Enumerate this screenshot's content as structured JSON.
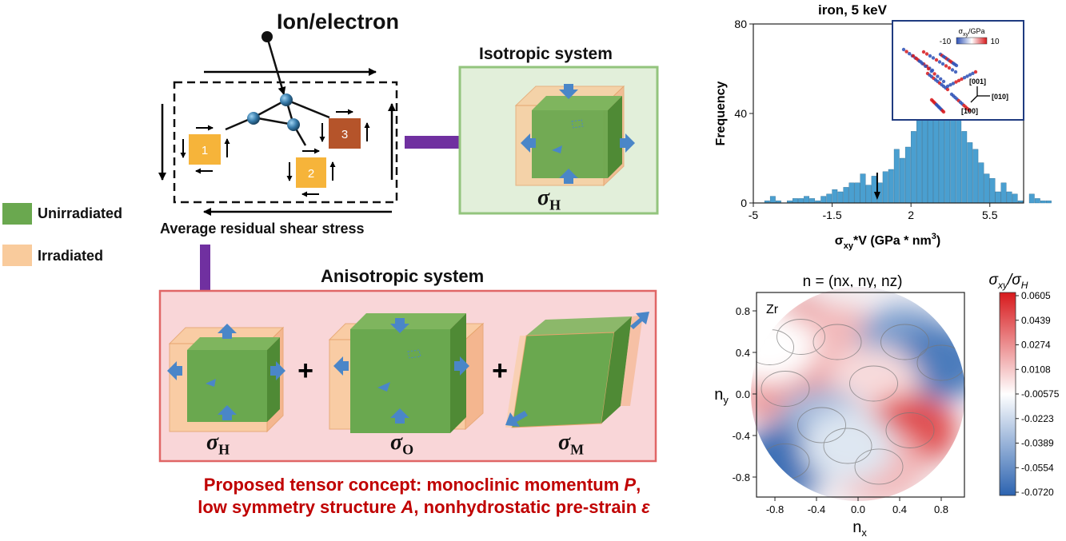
{
  "schematic": {
    "source_label": "Ion/electron",
    "stress_label": "Average residual shear stress",
    "site_labels": [
      "1",
      "2",
      "3"
    ]
  },
  "legend": {
    "items": [
      {
        "label": "Unirradiated",
        "color": "#6aa84f"
      },
      {
        "label": "Irradiated",
        "color": "#f9cb9c"
      }
    ]
  },
  "isotropic": {
    "title": "Isotropic system",
    "sigma": "σ",
    "subscript": "H"
  },
  "anisotropic": {
    "title": "Anisotropic system",
    "terms": [
      {
        "sigma": "σ",
        "subscript": "H"
      },
      {
        "sigma": "σ",
        "subscript": "O"
      },
      {
        "sigma": "σ",
        "subscript": "M"
      }
    ],
    "plus": "+"
  },
  "concept": {
    "line1_pre": "Proposed tensor concept: monoclinic momentum ",
    "line1_var": "P",
    "line1_post": ",",
    "line2_a": "low symmetry structure ",
    "line2_var1": "A",
    "line2_b": ", nonhydrostatic pre-strain ",
    "line2_var2": "ε"
  },
  "colors": {
    "green": "#6aa84f",
    "green_box_bg": "#e2efda",
    "green_box_border": "#93c47d",
    "orange": "#f9cb9c",
    "pink_box_bg": "#f9d6d8",
    "pink_box_border": "#e06666",
    "purple": "#7030a0",
    "blue_arrow": "#4a86c8",
    "concept_red": "#c00000",
    "hist_bar": "#4a9fd0"
  },
  "chart_data": [
    {
      "type": "bar",
      "title": "iron, 5 keV",
      "xlabel": "σxy*V (GPa * nm3)",
      "ylabel": "Frequency",
      "xlim": [
        -5,
        7
      ],
      "ylim": [
        0,
        80
      ],
      "x_ticks": [
        "-5",
        "-1.5",
        "2",
        "5.5"
      ],
      "y_ticks": [
        "0",
        "40",
        "80"
      ],
      "bin_width": 0.25,
      "bin_start": -4.5,
      "values": [
        1,
        3,
        1,
        0,
        1,
        2,
        2,
        3,
        2,
        1,
        3,
        4,
        6,
        5,
        7,
        9,
        9,
        13,
        8,
        12,
        9,
        14,
        15,
        24,
        20,
        25,
        32,
        40,
        46,
        53,
        60,
        69,
        57,
        45,
        40,
        32,
        27,
        24,
        18,
        13,
        11,
        5,
        9,
        5,
        4,
        1,
        0,
        4,
        2,
        1,
        1,
        0,
        0,
        0,
        1,
        2,
        3,
        1
      ],
      "marker_x": 0.5,
      "inset": {
        "colorbar_label": "σxy/GPa",
        "colorbar_min": "-10",
        "colorbar_max": "10",
        "axes": [
          "[001]",
          "[010]",
          "[100]"
        ]
      }
    },
    {
      "type": "heatmap",
      "title": "n = (nx, ny, nz)",
      "xlabel": "nx",
      "ylabel": "ny",
      "annotation": "Zr",
      "xlim": [
        -1,
        1
      ],
      "ylim": [
        -1,
        1
      ],
      "x_ticks": [
        "-0.8",
        "-0.4",
        "0.0",
        "0.4",
        "0.8"
      ],
      "y_ticks": [
        "0.8",
        "0.4",
        "0.0",
        "-0.4",
        "-0.8"
      ],
      "colorbar_title": "σxy/σH",
      "colorbar_values": [
        "0.0605",
        "0.0439",
        "0.0274",
        "0.0108",
        "-0.00575",
        "-0.0223",
        "-0.0389",
        "-0.0554",
        "-0.0720"
      ],
      "regions": [
        {
          "x": -0.55,
          "y": 0.55,
          "level": 0.045
        },
        {
          "x": -0.2,
          "y": 0.5,
          "level": 0.02
        },
        {
          "x": 0.45,
          "y": 0.5,
          "level": -0.04
        },
        {
          "x": 0.8,
          "y": 0.3,
          "level": -0.055
        },
        {
          "x": 0.15,
          "y": 0.1,
          "level": 0.01
        },
        {
          "x": -0.7,
          "y": 0.05,
          "level": 0.03
        },
        {
          "x": -0.35,
          "y": -0.3,
          "level": -0.03
        },
        {
          "x": 0.5,
          "y": -0.35,
          "level": 0.05
        },
        {
          "x": 0.2,
          "y": -0.7,
          "level": 0.02
        },
        {
          "x": -0.7,
          "y": -0.65,
          "level": -0.06
        },
        {
          "x": -0.1,
          "y": -0.5,
          "level": -0.01
        },
        {
          "x": -0.85,
          "y": 0.45,
          "level": 0.0
        }
      ]
    }
  ]
}
